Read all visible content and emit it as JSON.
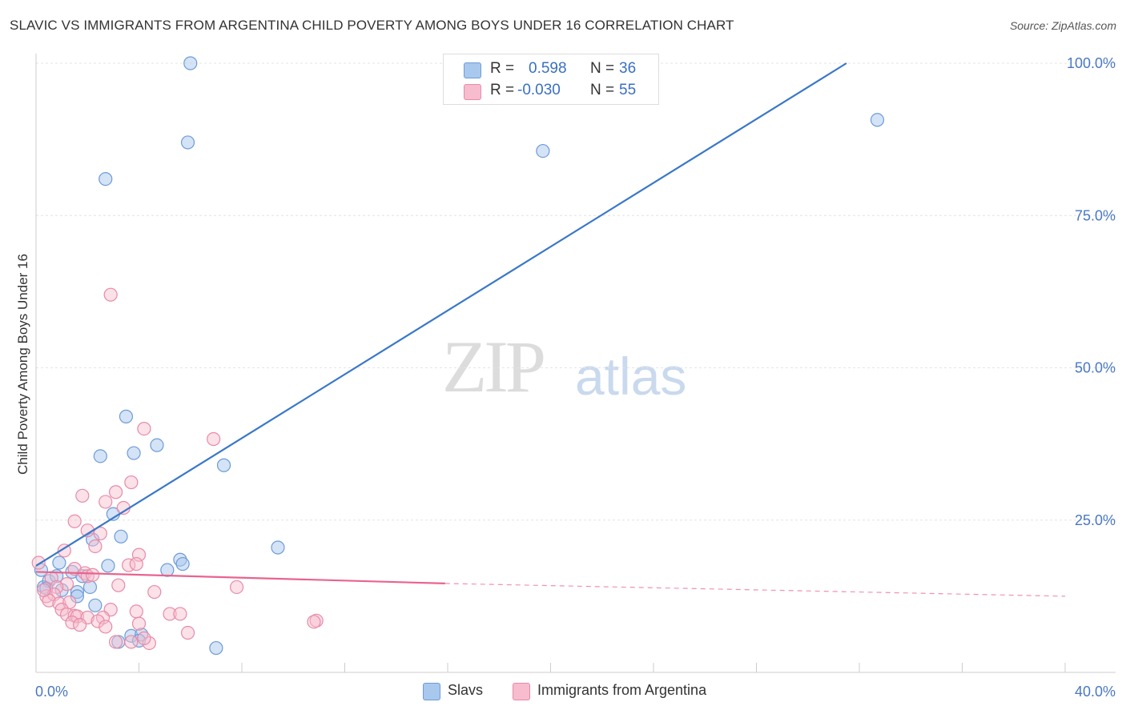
{
  "title": "SLAVIC VS IMMIGRANTS FROM ARGENTINA CHILD POVERTY AMONG BOYS UNDER 16 CORRELATION CHART",
  "source": "Source: ZipAtlas.com",
  "watermark": {
    "zip": "ZIP",
    "atlas": "atlas"
  },
  "legend": {
    "r_label": "R =",
    "n_label": "N =",
    "slavs": {
      "r": "0.598",
      "n": "36"
    },
    "argentina": {
      "r": "-0.030",
      "n": "55"
    }
  },
  "bottom_legend": {
    "slavs": "Slavs",
    "argentina": "Immigrants from Argentina"
  },
  "colors": {
    "slavs_fill": "#a9c8ee",
    "slavs_stroke": "#6d9bd8",
    "slavs_line": "#3a78c8",
    "arg_fill": "#f7bccd",
    "arg_stroke": "#e88aa8",
    "arg_line": "#e8648e",
    "tick_text": "#4a78c2",
    "grid": "#e4e4e4"
  },
  "chart_data": {
    "type": "scatter",
    "title": "SLAVIC VS IMMIGRANTS FROM ARGENTINA CHILD POVERTY AMONG BOYS UNDER 16 CORRELATION CHART",
    "xlabel": "",
    "ylabel": "Child Poverty Among Boys Under 16",
    "xlim": [
      0,
      40
    ],
    "ylim": [
      0,
      103
    ],
    "x_tick_labels": [
      "0.0%",
      "40.0%"
    ],
    "y_ticks": [
      25,
      50,
      75,
      100
    ],
    "y_tick_labels": [
      "25.0%",
      "50.0%",
      "75.0%",
      "100.0%"
    ],
    "series": [
      {
        "name": "Slavs",
        "points": [
          [
            6.0,
            100.0
          ],
          [
            5.9,
            87.0
          ],
          [
            2.7,
            81.0
          ],
          [
            19.7,
            85.6
          ],
          [
            32.7,
            90.7
          ],
          [
            3.5,
            42.0
          ],
          [
            2.5,
            35.5
          ],
          [
            3.8,
            36.0
          ],
          [
            4.7,
            37.3
          ],
          [
            7.3,
            34.0
          ],
          [
            3.0,
            26.0
          ],
          [
            3.3,
            22.3
          ],
          [
            9.4,
            20.5
          ],
          [
            2.2,
            21.8
          ],
          [
            5.6,
            18.5
          ],
          [
            5.7,
            17.8
          ],
          [
            5.1,
            16.8
          ],
          [
            0.2,
            16.8
          ],
          [
            0.9,
            18.0
          ],
          [
            1.4,
            16.5
          ],
          [
            2.8,
            17.5
          ],
          [
            0.3,
            14.0
          ],
          [
            0.5,
            15.0
          ],
          [
            0.8,
            15.8
          ],
          [
            1.8,
            15.8
          ],
          [
            1.6,
            13.2
          ],
          [
            2.1,
            14.0
          ],
          [
            0.4,
            13.8
          ],
          [
            1.0,
            13.5
          ],
          [
            1.6,
            12.5
          ],
          [
            2.3,
            11.0
          ],
          [
            3.7,
            6.0
          ],
          [
            4.1,
            6.2
          ],
          [
            3.2,
            5.0
          ],
          [
            4.0,
            5.2
          ],
          [
            7.0,
            4.0
          ]
        ]
      },
      {
        "name": "Immigrants from Argentina",
        "points": [
          [
            2.9,
            62.0
          ],
          [
            4.2,
            40.0
          ],
          [
            6.9,
            38.3
          ],
          [
            3.7,
            31.2
          ],
          [
            3.1,
            29.6
          ],
          [
            1.8,
            29.0
          ],
          [
            2.7,
            28.0
          ],
          [
            3.4,
            27.0
          ],
          [
            1.5,
            24.8
          ],
          [
            2.0,
            23.3
          ],
          [
            2.5,
            22.8
          ],
          [
            2.3,
            20.7
          ],
          [
            4.0,
            19.3
          ],
          [
            1.1,
            20.0
          ],
          [
            3.6,
            17.6
          ],
          [
            0.1,
            18.0
          ],
          [
            3.9,
            17.8
          ],
          [
            1.5,
            17.0
          ],
          [
            1.9,
            16.3
          ],
          [
            2.0,
            15.8
          ],
          [
            2.2,
            16.0
          ],
          [
            0.6,
            15.5
          ],
          [
            1.2,
            14.5
          ],
          [
            3.2,
            14.3
          ],
          [
            0.8,
            14.0
          ],
          [
            7.8,
            14.0
          ],
          [
            4.6,
            13.2
          ],
          [
            0.4,
            12.5
          ],
          [
            0.7,
            12.8
          ],
          [
            0.5,
            11.8
          ],
          [
            0.9,
            11.3
          ],
          [
            1.3,
            11.5
          ],
          [
            1.0,
            10.3
          ],
          [
            2.9,
            10.3
          ],
          [
            3.9,
            10.0
          ],
          [
            1.2,
            9.5
          ],
          [
            1.5,
            9.3
          ],
          [
            1.6,
            9.2
          ],
          [
            2.0,
            9.0
          ],
          [
            2.6,
            9.0
          ],
          [
            5.2,
            9.6
          ],
          [
            5.6,
            9.6
          ],
          [
            1.4,
            8.2
          ],
          [
            2.4,
            8.4
          ],
          [
            4.0,
            8.0
          ],
          [
            10.9,
            8.5
          ],
          [
            10.8,
            8.3
          ],
          [
            2.7,
            7.5
          ],
          [
            5.9,
            6.5
          ],
          [
            3.1,
            5.0
          ],
          [
            3.7,
            5.0
          ],
          [
            4.4,
            4.8
          ],
          [
            4.2,
            5.6
          ],
          [
            1.7,
            7.8
          ],
          [
            0.3,
            13.5
          ]
        ]
      }
    ],
    "trendlines": [
      {
        "name": "Slavs",
        "x": [
          0,
          31.5
        ],
        "y": [
          17.5,
          100.0
        ],
        "dashed_to": null
      },
      {
        "name": "Immigrants from Argentina",
        "x": [
          0,
          15.9
        ],
        "y": [
          16.5,
          14.6
        ],
        "dashed_to": [
          40,
          12.5
        ]
      }
    ]
  }
}
